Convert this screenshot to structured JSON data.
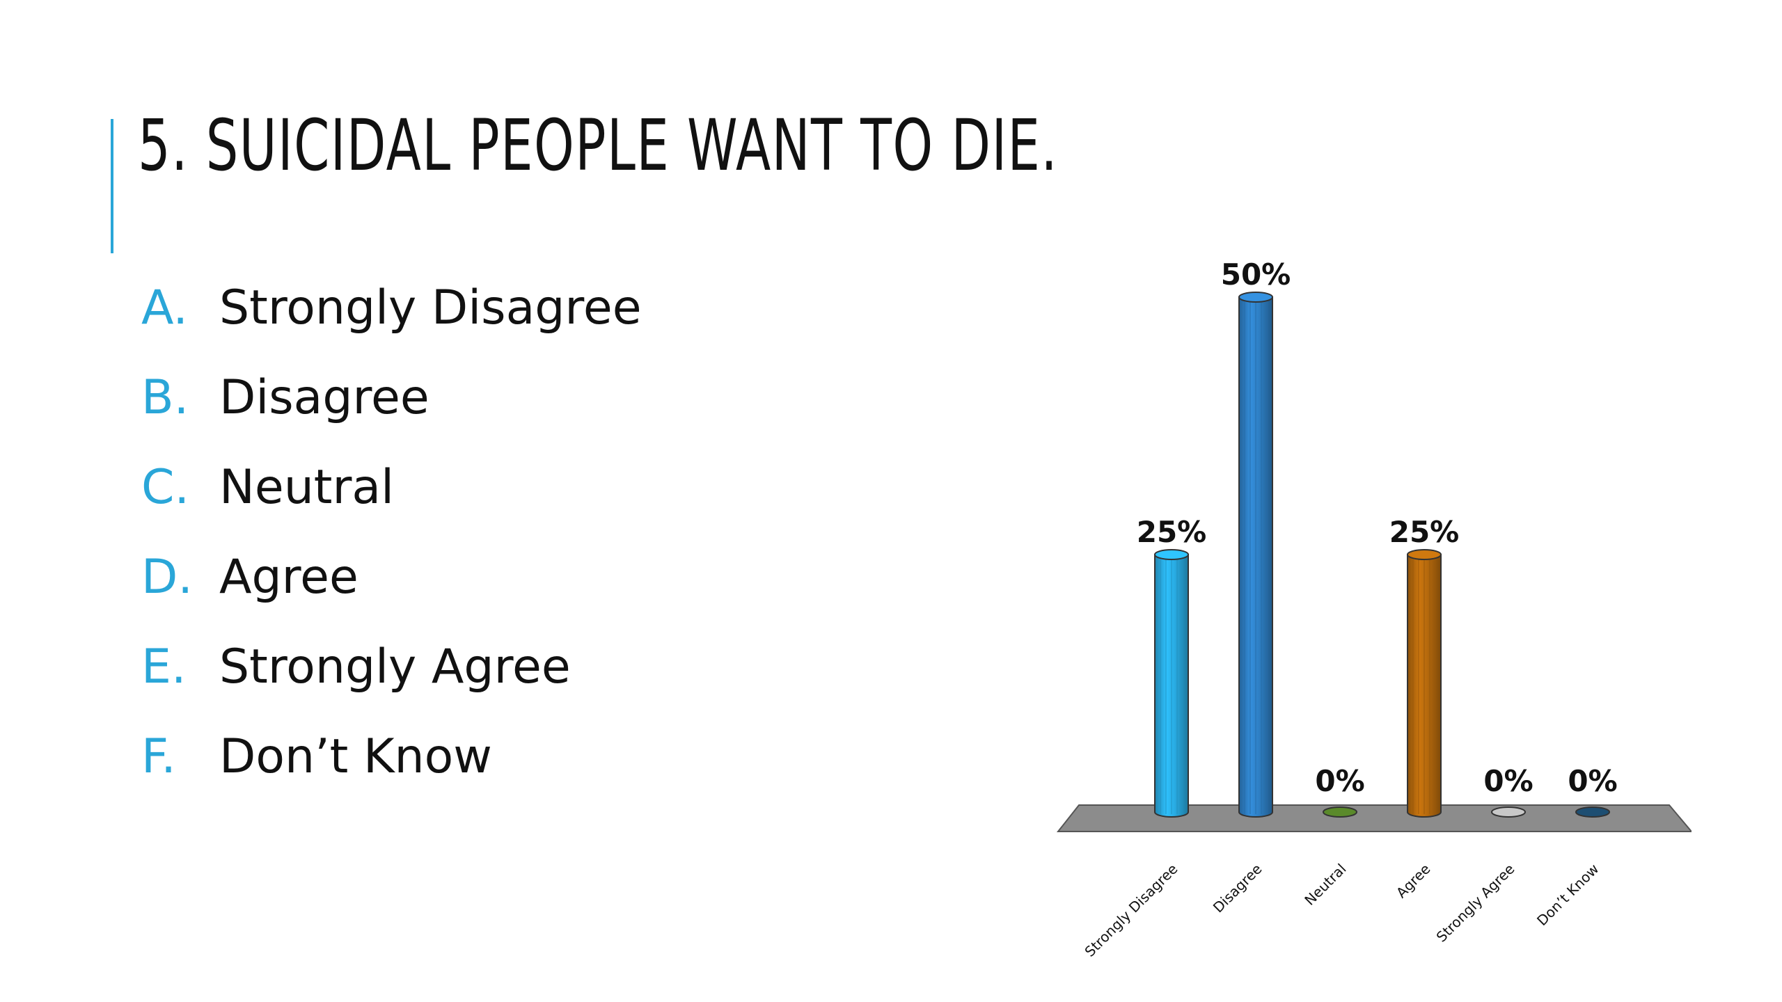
{
  "slide": {
    "title": "5. SUICIDAL PEOPLE WANT TO DIE.",
    "accent_color": "#2aa6d8",
    "options": [
      {
        "letter": "A.",
        "text": "Strongly Disagree"
      },
      {
        "letter": "B.",
        "text": "Disagree"
      },
      {
        "letter": "C.",
        "text": "Neutral"
      },
      {
        "letter": "D.",
        "text": "Agree"
      },
      {
        "letter": "E.",
        "text": "Strongly Agree"
      },
      {
        "letter": "F.",
        "text": "Don’t Know"
      }
    ]
  },
  "chart_data": {
    "type": "bar",
    "style": "3d-cylinder",
    "categories": [
      "Strongly Disagree",
      "Disagree",
      "Neutral",
      "Agree",
      "Strongly Agree",
      "Don’t Know"
    ],
    "values": [
      25,
      50,
      0,
      25,
      0,
      0
    ],
    "data_labels": [
      "25%",
      "50%",
      "0%",
      "25%",
      "0%",
      "0%"
    ],
    "colors": [
      "#29abe2",
      "#2e7fc4",
      "#5a8a2a",
      "#b5690d",
      "#c8c8c8",
      "#1d4e72"
    ],
    "ylim": [
      0,
      50
    ],
    "grid": false,
    "legend": "none",
    "floor_color": "#8c8c8c",
    "title": "",
    "xlabel": "",
    "ylabel": ""
  }
}
